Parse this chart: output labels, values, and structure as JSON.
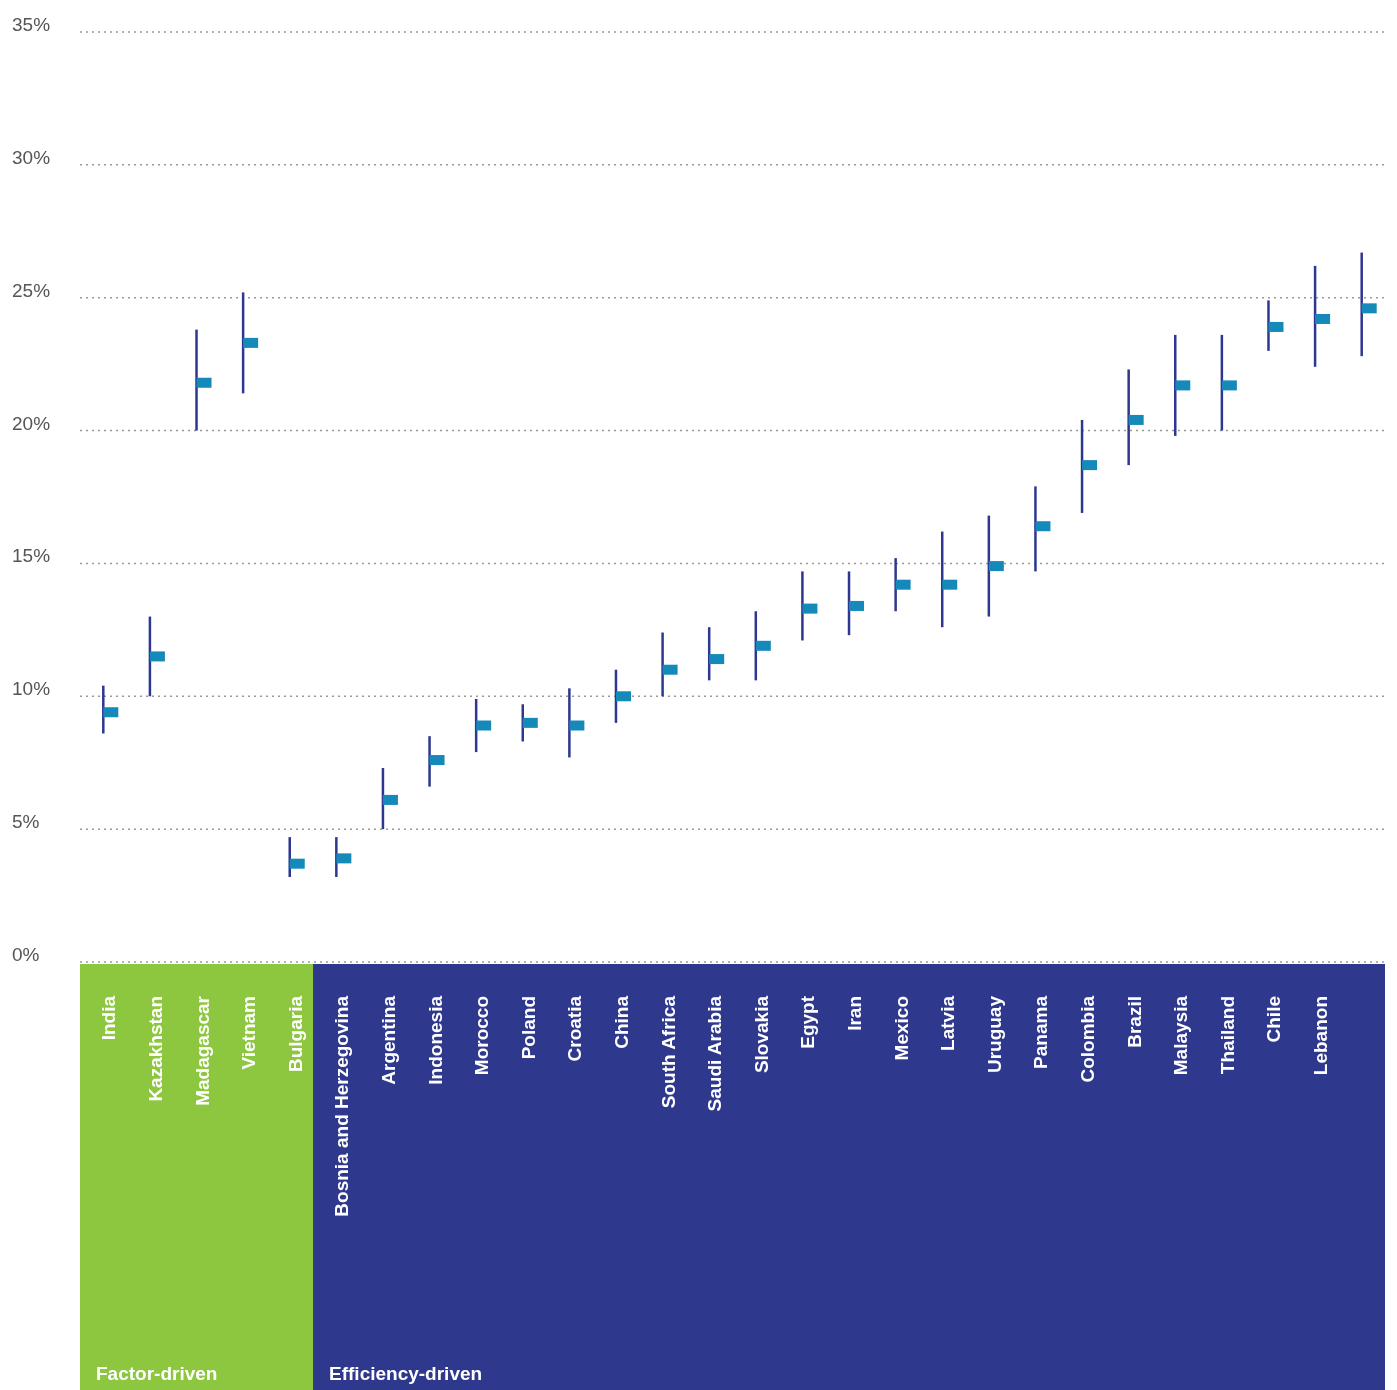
{
  "chart_data": {
    "type": "scatter",
    "marker": "square",
    "grid": "y",
    "legend": false,
    "categories": [
      "India",
      "Kazakhstan",
      "Madagascar",
      "Vietnam",
      "Bulgaria",
      "Bosnia and Herzegovina",
      "Argentina",
      "Indonesia",
      "Morocco",
      "Poland",
      "Croatia",
      "China",
      "South Africa",
      "Saudi Arabia",
      "Slovakia",
      "Egypt",
      "Iran",
      "Mexico",
      "Latvia",
      "Uruguay",
      "Panama",
      "Colombia",
      "Brazil",
      "Malaysia",
      "Thailand",
      "Chile",
      "Lebanon",
      null
    ],
    "series": [
      {
        "color": "#1589b9",
        "values": [
          9.4,
          11.5,
          21.8,
          23.3,
          3.7,
          3.9,
          6.1,
          7.6,
          8.9,
          9.0,
          8.9,
          10.0,
          11.0,
          11.4,
          11.9,
          13.3,
          13.4,
          14.2,
          14.2,
          14.9,
          16.4,
          18.7,
          20.4,
          21.7,
          21.7,
          23.9,
          24.2,
          24.6
        ],
        "errors": [
          [
            8.6,
            10.4
          ],
          [
            10.0,
            13.0
          ],
          [
            20.0,
            23.8
          ],
          [
            21.4,
            25.2
          ],
          [
            3.2,
            4.7
          ],
          [
            3.2,
            4.7
          ],
          [
            5.0,
            7.3
          ],
          [
            6.6,
            8.5
          ],
          [
            7.9,
            9.9
          ],
          [
            8.3,
            9.7
          ],
          [
            7.7,
            10.3
          ],
          [
            9.0,
            11.0
          ],
          [
            10.0,
            12.4
          ],
          [
            10.6,
            12.6
          ],
          [
            10.6,
            13.2
          ],
          [
            12.1,
            14.7
          ],
          [
            12.3,
            14.7
          ],
          [
            13.2,
            15.2
          ],
          [
            12.6,
            16.2
          ],
          [
            13.0,
            16.8
          ],
          [
            14.7,
            17.9
          ],
          [
            16.9,
            20.4
          ],
          [
            18.7,
            22.3
          ],
          [
            19.8,
            23.6
          ],
          [
            20.0,
            23.6
          ],
          [
            23.0,
            24.9
          ],
          [
            22.4,
            26.2
          ],
          [
            22.8,
            26.7
          ]
        ]
      }
    ],
    "ylim": [
      0,
      35
    ],
    "yticks": [
      {
        "value": 0,
        "label": "0%"
      },
      {
        "value": 5,
        "label": "5%"
      },
      {
        "value": 10,
        "label": "10%"
      },
      {
        "value": 15,
        "label": "15%"
      },
      {
        "value": 20,
        "label": "20%"
      },
      {
        "value": 25,
        "label": "25%"
      },
      {
        "value": 30,
        "label": "30%"
      },
      {
        "value": 35,
        "label": "35%"
      }
    ],
    "annotations": [
      "Factor-driven",
      "Efficiency-driven"
    ]
  }
}
